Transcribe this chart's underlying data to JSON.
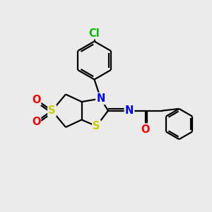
{
  "background_color": "#ebebeb",
  "atom_colors": {
    "C": "#000000",
    "N": "#0000ff",
    "S": "#cccc00",
    "O": "#ff0000",
    "Cl": "#00bb00",
    "H": "#000000"
  },
  "bond_color": "#000000",
  "line_width": 1.6,
  "font_size_atom": 10.5
}
